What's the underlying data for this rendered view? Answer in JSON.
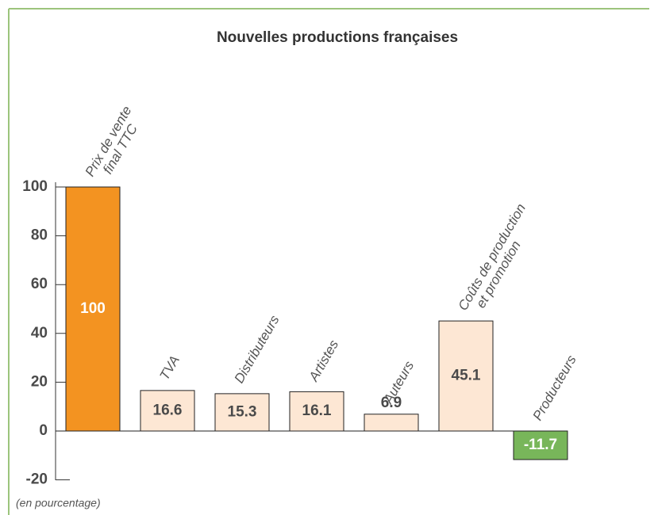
{
  "chart_data": {
    "type": "bar",
    "title": "Nouvelles productions françaises",
    "note": "(en pourcentage)",
    "categories": [
      [
        "Prix de vente",
        "final TTC"
      ],
      [
        "TVA"
      ],
      [
        "Distributeurs"
      ],
      [
        "Artistes"
      ],
      [
        "Auteurs"
      ],
      [
        "Coûts de production",
        "et promotion"
      ],
      [
        "Producteurs"
      ]
    ],
    "values": [
      100,
      16.6,
      15.3,
      16.1,
      6.9,
      45.1,
      -11.7
    ],
    "colors": [
      "#f39321",
      "#fde7d4",
      "#fde7d4",
      "#fde7d4",
      "#fde7d4",
      "#fde7d4",
      "#78b65a"
    ],
    "ylim": [
      -20,
      100
    ],
    "yticks": [
      -20,
      0,
      20,
      40,
      60,
      80,
      100
    ],
    "grid": false
  }
}
